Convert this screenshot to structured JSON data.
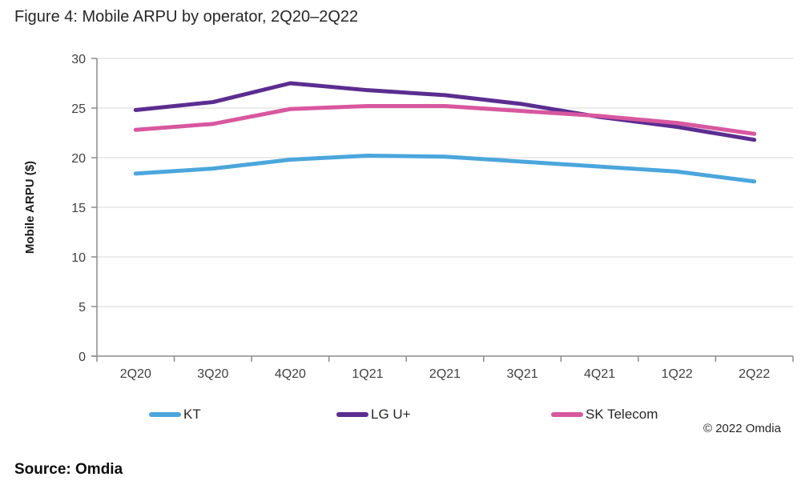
{
  "title": "Figure 4: Mobile ARPU by operator, 2Q20–2Q22",
  "source": "Source: Omdia",
  "copyright": "© 2022 Omdia",
  "colors": {
    "grid": "#D9D9D9",
    "axis": "#8C8C8C",
    "tick_text": "#404040",
    "kt_blue": "#4BA6DC",
    "lgu_purple": "#5B2D90",
    "skt_pink": "#D8579F"
  },
  "chart_data": {
    "type": "line",
    "title": "Figure 4: Mobile ARPU by operator, 2Q20–2Q22",
    "xlabel": "",
    "ylabel": "Mobile ARPU ($)",
    "ylim": [
      0,
      30
    ],
    "ytick_step": 5,
    "grid": "horizontal",
    "legend_position": "bottom",
    "categories": [
      "2Q20",
      "3Q20",
      "4Q20",
      "1Q21",
      "2Q21",
      "3Q21",
      "4Q21",
      "1Q22",
      "2Q22"
    ],
    "series": [
      {
        "name": "KT",
        "color": "#4BA6DC",
        "values": [
          18.4,
          18.9,
          19.8,
          20.2,
          20.1,
          19.6,
          19.1,
          18.6,
          17.6
        ]
      },
      {
        "name": "LG U+",
        "color": "#5B2D90",
        "values": [
          24.8,
          25.6,
          27.5,
          26.8,
          26.3,
          25.4,
          24.1,
          23.1,
          21.8
        ]
      },
      {
        "name": "SK Telecom",
        "color": "#D8579F",
        "values": [
          22.8,
          23.4,
          24.9,
          25.2,
          25.2,
          24.7,
          24.2,
          23.5,
          22.4
        ]
      }
    ]
  }
}
